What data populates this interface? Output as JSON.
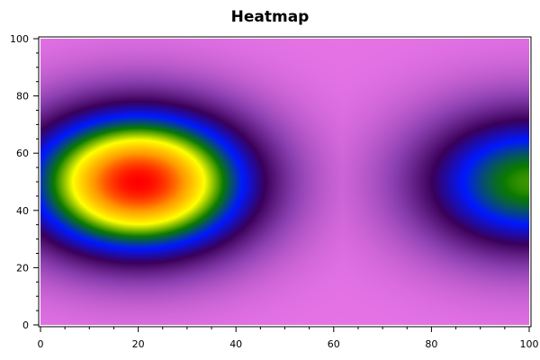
{
  "chart_data": {
    "type": "heatmap",
    "title": "Heatmap",
    "xlabel": "",
    "ylabel": "",
    "xlim": [
      0,
      100
    ],
    "ylim": [
      0,
      100
    ],
    "x_ticks": [
      0,
      20,
      40,
      60,
      80,
      100
    ],
    "y_ticks": [
      0,
      20,
      40,
      60,
      80,
      100
    ],
    "grid": false,
    "legend": "none",
    "colormap": [
      "#e673e6",
      "#8a3fb0",
      "#3a005a",
      "#0018ff",
      "#0a7a00",
      "#ffff00",
      "#ff9900",
      "#ff0000"
    ],
    "hotspots": [
      {
        "x": 20,
        "y": 50,
        "value": 1.0
      },
      {
        "x": 100,
        "y": 50,
        "value": 0.6
      }
    ]
  }
}
